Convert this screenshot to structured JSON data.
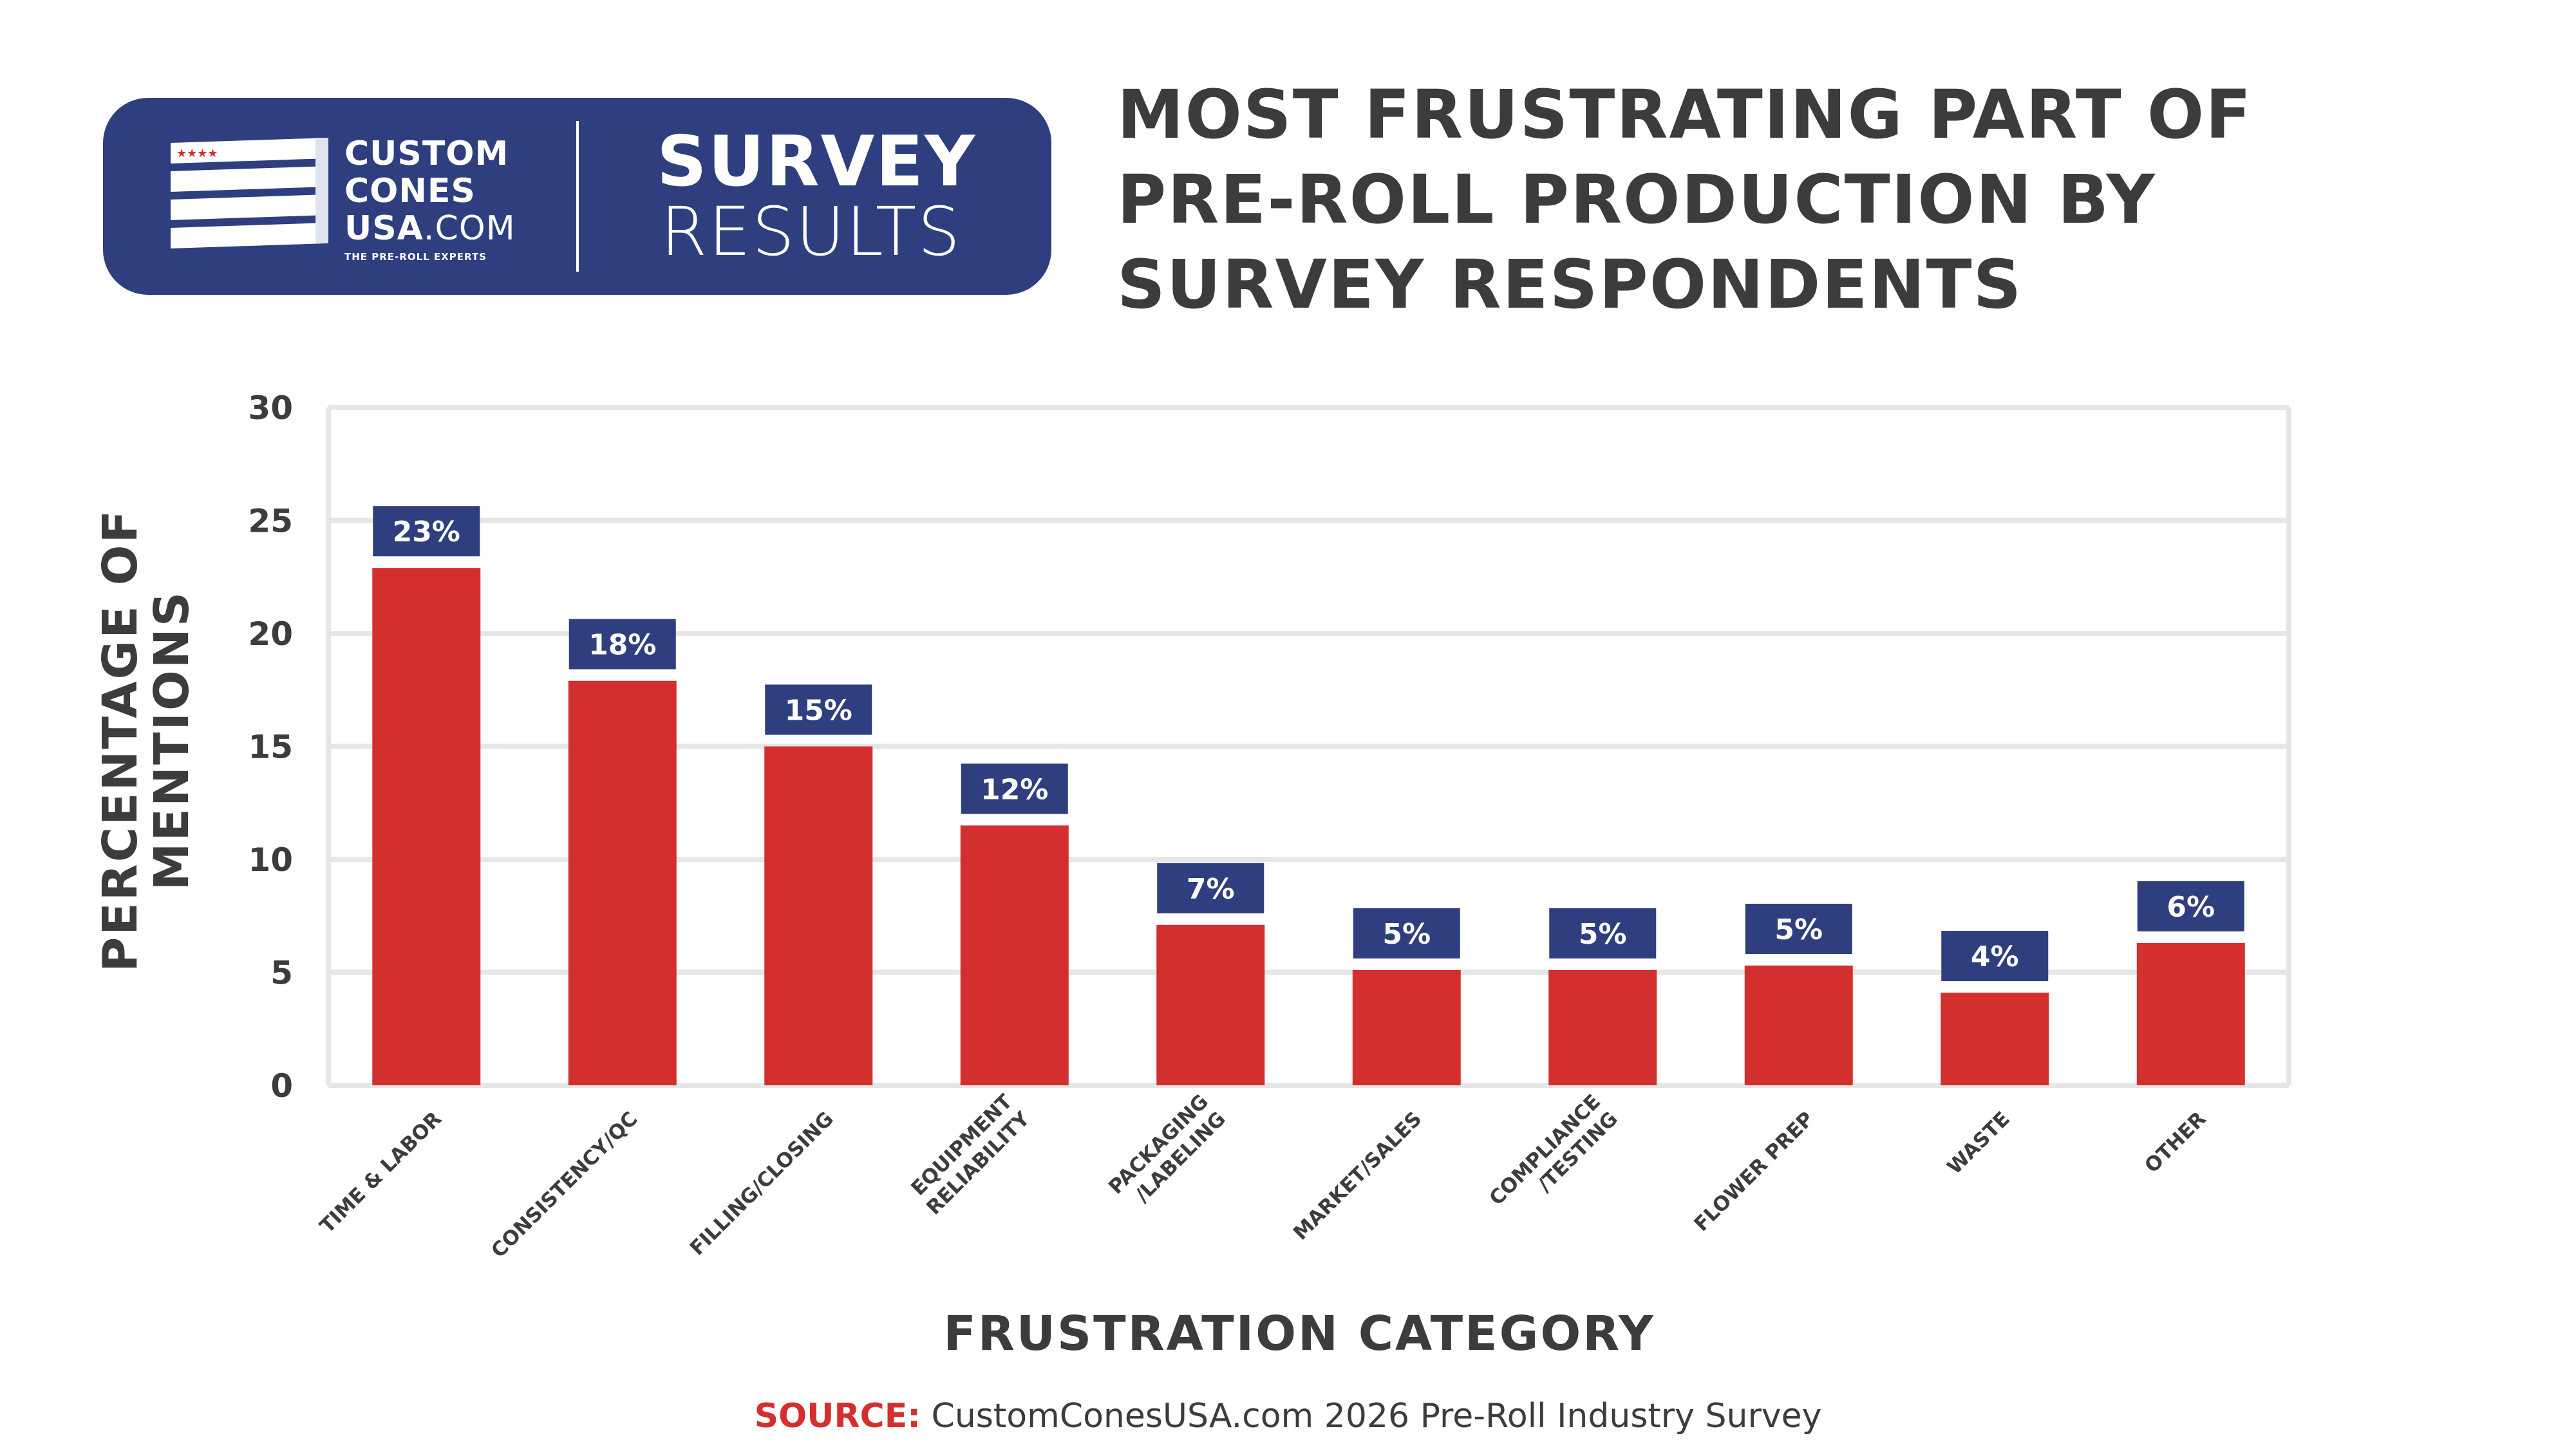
{
  "badge": {
    "brand_line1": "CUSTOM",
    "brand_line2": "CONES",
    "brand_line3_bold": "USA",
    "brand_line3_light": ".COM",
    "tagline": "THE PRE-ROLL EXPERTS",
    "survey": "SURVEY",
    "results": "RESULTS"
  },
  "title_lines": [
    "MOST FRUSTRATING PART OF",
    "PRE-ROLL PRODUCTION BY",
    "SURVEY RESPONDENTS"
  ],
  "source": {
    "label": "SOURCE:",
    "text": " CustomConesUSA.com 2026 Pre-Roll Industry Survey"
  },
  "colors": {
    "bar": "#d42f2f",
    "label_bg": "#2f3e7e",
    "text": "#3c3c3c",
    "grid": "#e6e6e6"
  },
  "chart_data": {
    "type": "bar",
    "title": "MOST FRUSTRATING PART OF PRE-ROLL PRODUCTION BY SURVEY RESPONDENTS",
    "xlabel": "FRUSTRATION CATEGORY",
    "ylabel_lines": [
      "PERCENTAGE OF",
      "MENTIONS"
    ],
    "ylim": [
      0,
      30
    ],
    "yticks": [
      0,
      5,
      10,
      15,
      20,
      25,
      30
    ],
    "grid": true,
    "categories": [
      [
        "TIME & LABOR"
      ],
      [
        "CONSISTENCY/QC"
      ],
      [
        "FILLING/CLOSING"
      ],
      [
        "EQUIPMENT",
        "RELIABILITY"
      ],
      [
        "PACKAGING",
        "/LABELING"
      ],
      [
        "MARKET/SALES"
      ],
      [
        "COMPLIANCE",
        "/TESTING"
      ],
      [
        "FLOWER PREP"
      ],
      [
        "WASTE"
      ],
      [
        "OTHER"
      ]
    ],
    "values": [
      22.9,
      17.9,
      15.0,
      11.5,
      7.1,
      5.1,
      5.1,
      5.3,
      4.1,
      6.3
    ],
    "data_labels": [
      "23%",
      "18%",
      "15%",
      "12%",
      "7%",
      "5%",
      "5%",
      "5%",
      "4%",
      "6%"
    ]
  }
}
